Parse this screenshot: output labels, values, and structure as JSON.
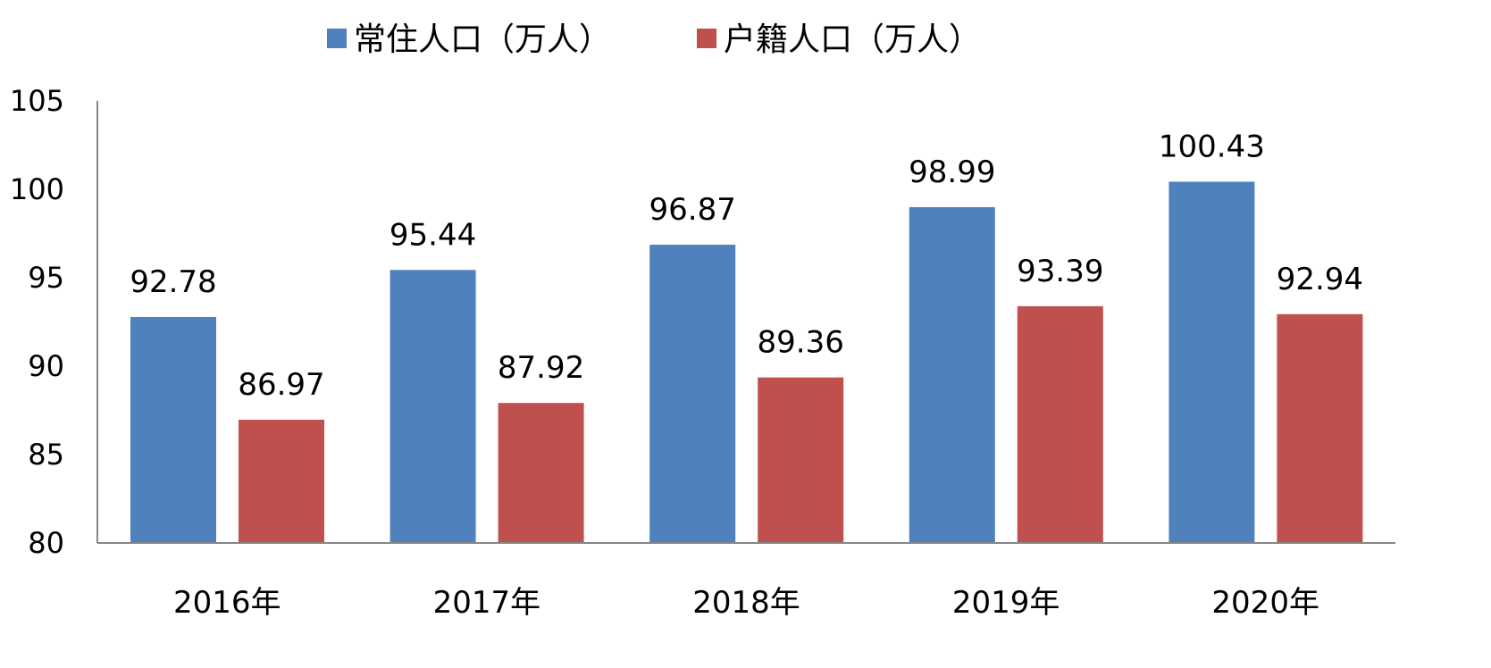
{
  "chart_data": {
    "type": "bar",
    "categories": [
      "2016年",
      "2017年",
      "2018年",
      "2019年",
      "2020年"
    ],
    "series": [
      {
        "name": "常住人口（万人）",
        "color": "#4F81BD",
        "values": [
          92.78,
          95.44,
          96.87,
          98.99,
          100.43
        ]
      },
      {
        "name": "户籍人口（万人）",
        "color": "#C0504D",
        "values": [
          86.97,
          87.92,
          89.36,
          93.39,
          92.94
        ]
      }
    ],
    "ylim": [
      80,
      105
    ],
    "yticks": [
      "80",
      "85",
      "90",
      "95",
      "100",
      "105"
    ],
    "legend_position": "top",
    "grid": false,
    "axis_color": "#868686"
  }
}
